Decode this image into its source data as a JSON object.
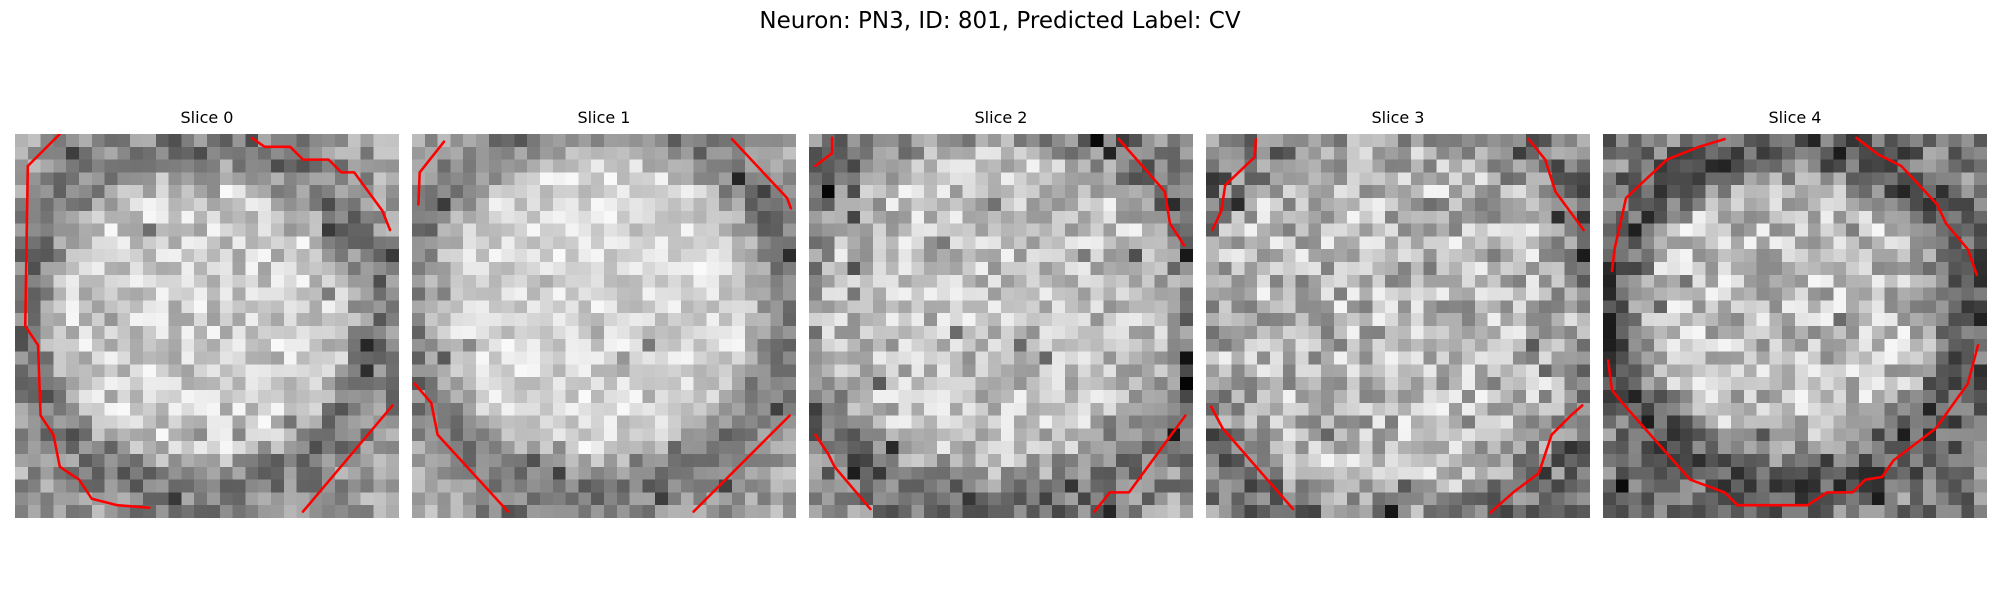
{
  "figure": {
    "title": "Neuron: PN3, ID: 801, Predicted Label: CV"
  },
  "slices": [
    {
      "title": "Slice 0"
    },
    {
      "title": "Slice 1"
    },
    {
      "title": "Slice 2"
    },
    {
      "title": "Slice 3"
    },
    {
      "title": "Slice 4"
    }
  ],
  "colors": {
    "contour": "#ff0000",
    "background": "#ffffff"
  },
  "image": {
    "colormap": "gray",
    "grid_cells": 30
  }
}
